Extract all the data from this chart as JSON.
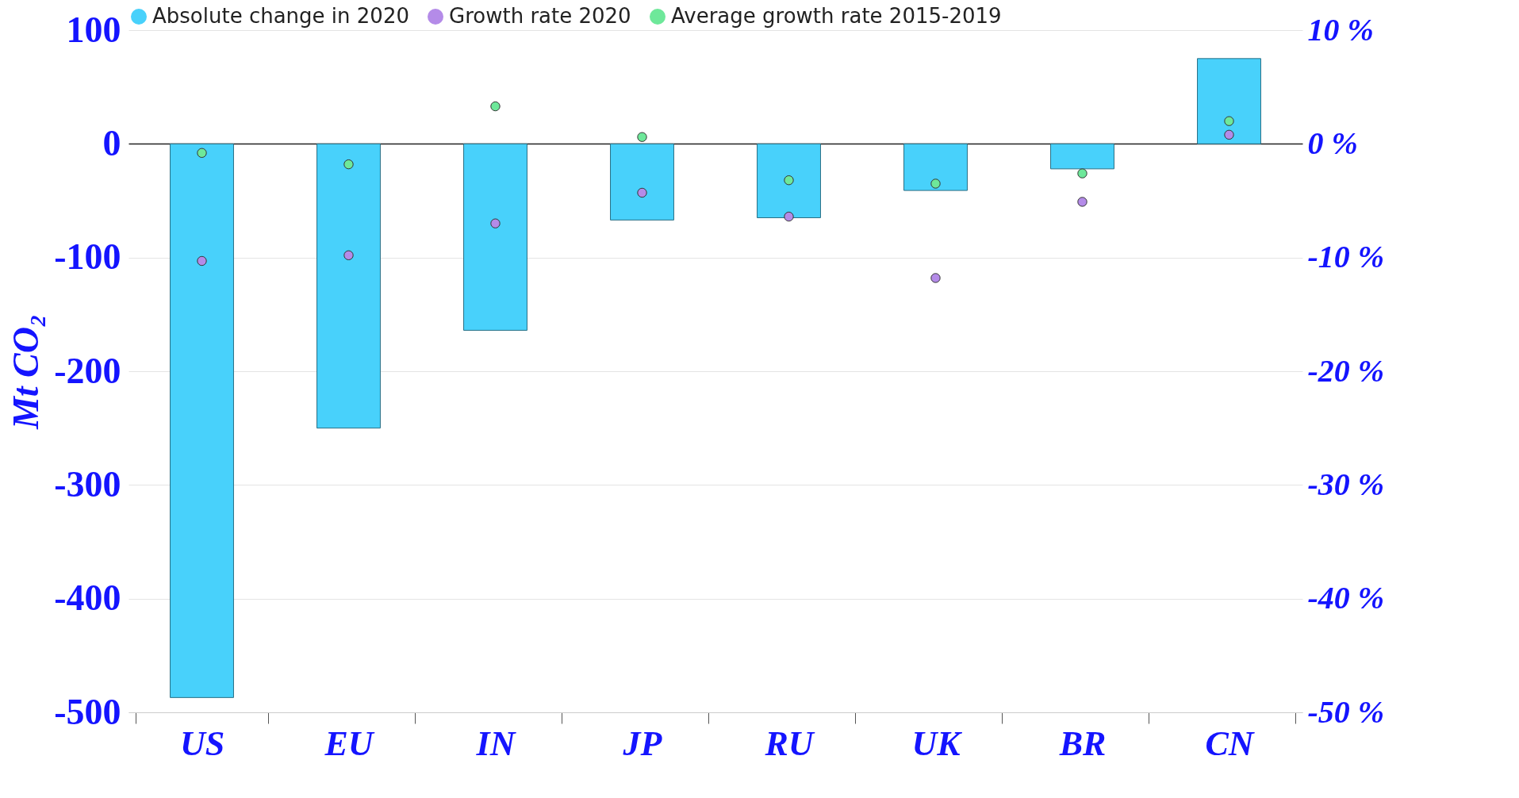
{
  "chart_data": {
    "type": "bar",
    "categories": [
      "US",
      "EU",
      "IN",
      "JP",
      "RU",
      "UK",
      "BR",
      "CN"
    ],
    "ylabel": "Mt CO₂",
    "ylim": [
      -500,
      100
    ],
    "yticks": [
      -500,
      -400,
      -300,
      -200,
      -100,
      0,
      100
    ],
    "y2lim": [
      -50,
      10
    ],
    "y2ticks": [
      {
        "value": -50,
        "label": "-50 %"
      },
      {
        "value": -40,
        "label": "-40 %"
      },
      {
        "value": -30,
        "label": "-30 %"
      },
      {
        "value": -20,
        "label": "-20 %"
      },
      {
        "value": -10,
        "label": "-10 %"
      },
      {
        "value": 0,
        "label": "0 %"
      },
      {
        "value": 10,
        "label": "10 %"
      }
    ],
    "grid": "y",
    "legend": "top",
    "marker": "circle",
    "series": [
      {
        "name": "Absolute change in 2020",
        "color": "#48d1fb",
        "values": [
          -487,
          -250,
          -164,
          -67,
          -65,
          -41,
          -22,
          75
        ]
      },
      {
        "name": "Growth rate 2020",
        "type": "scatter",
        "axis": "y2",
        "color": "#b48be8",
        "values": [
          -10.3,
          -9.8,
          -7,
          -4.3,
          -6.4,
          -11.8,
          -5.1,
          0.8
        ]
      },
      {
        "name": "Average growth rate 2015-2019",
        "type": "scatter",
        "axis": "y2",
        "color": "#6ee89a",
        "values": [
          -0.8,
          -1.8,
          3.3,
          0.6,
          -3.2,
          -3.5,
          -2.6,
          2
        ]
      }
    ]
  }
}
